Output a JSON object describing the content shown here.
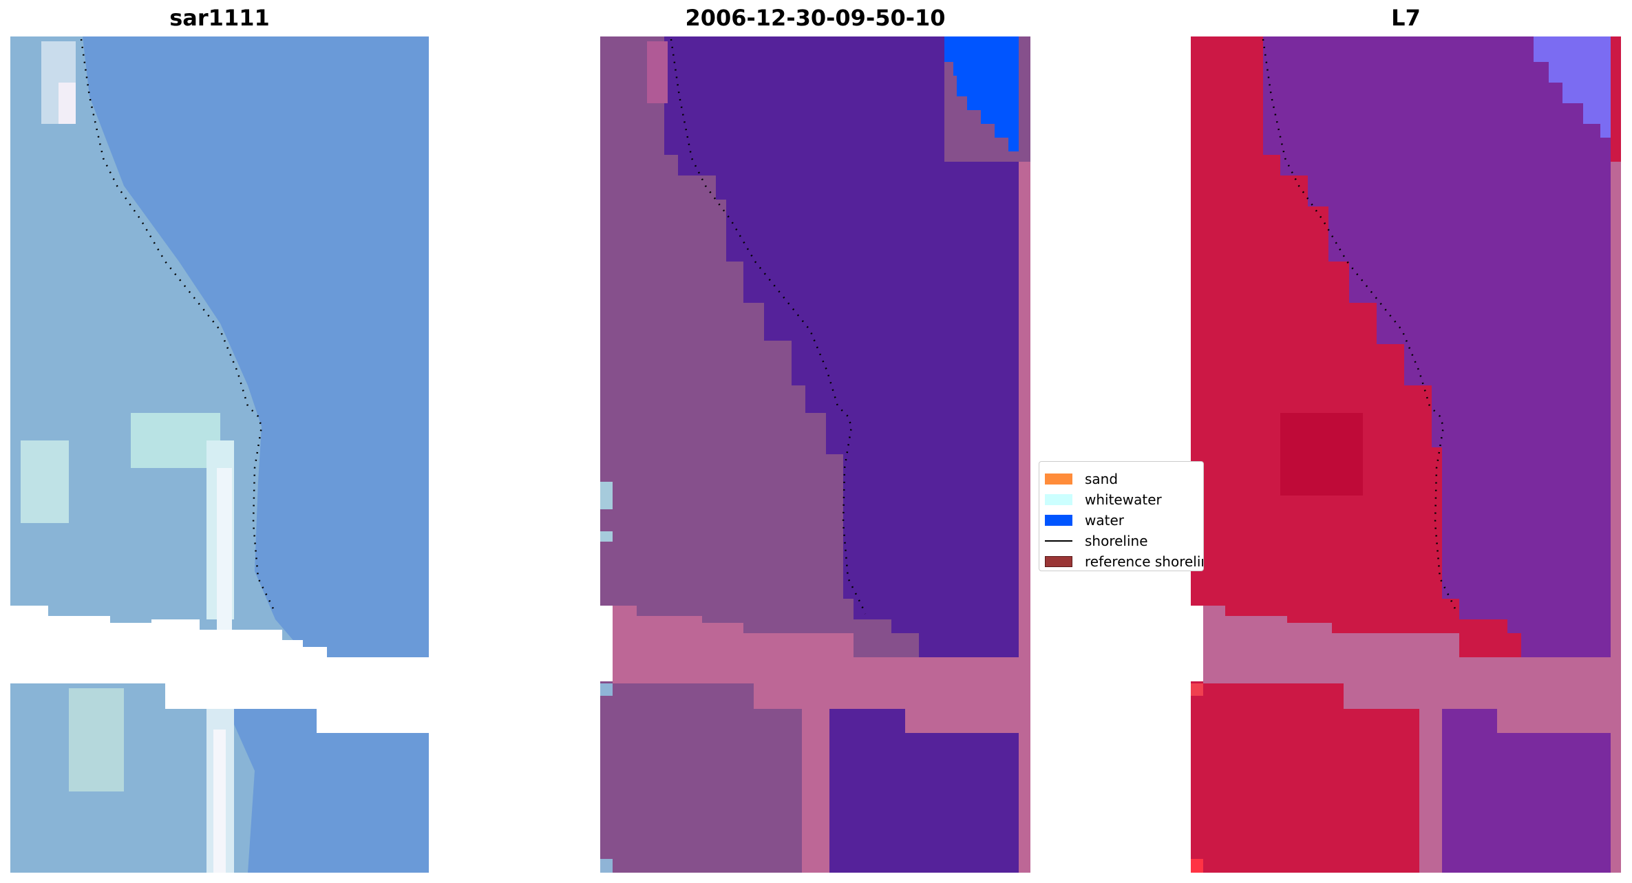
{
  "panels": [
    {
      "title": "sar1111"
    },
    {
      "title": "2006-12-30-09-50-10"
    },
    {
      "title": "L7"
    }
  ],
  "legend": {
    "items": [
      {
        "label": "sand",
        "color": "#ff8c3a"
      },
      {
        "label": "whitewater",
        "color": "#ccffff"
      },
      {
        "label": "water",
        "color": "#0055ff"
      },
      {
        "label": "shoreline",
        "color": "#000000"
      },
      {
        "label": "reference shoreline",
        "color": "#9a3636"
      }
    ]
  },
  "colors": {
    "rgb_water": "#6a9ad8",
    "rgb_land": "#89b4d6",
    "rgb_surf": "#e9f4f4",
    "class_land": "#86508c",
    "class_water": "#55229a",
    "class_water_pure": "#0055ff",
    "class_mask": "#bd6796",
    "mndwi_land": "#cc1845",
    "mndwi_water": "#7a2a9e",
    "mndwi_water_light": "#7b6cf2",
    "shoreline": "#000000"
  }
}
